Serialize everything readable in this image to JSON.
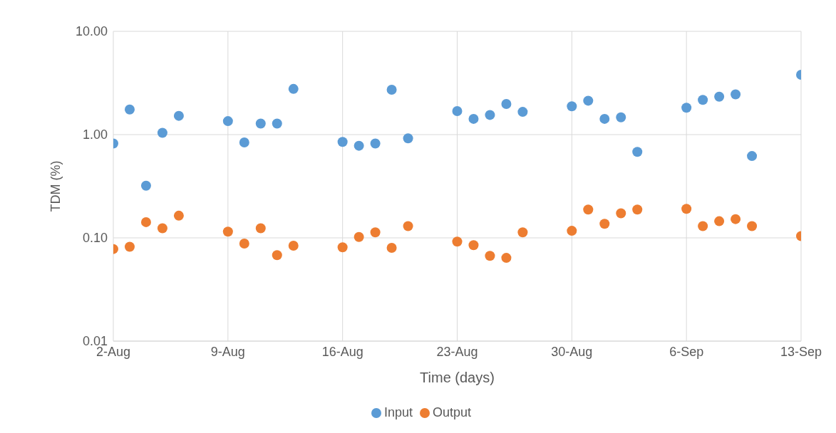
{
  "chart_data": {
    "type": "scatter",
    "xlabel": "Time (days)",
    "ylabel": "TDM (%)",
    "log": "y",
    "grid": true,
    "legend": "bottom",
    "marker": "circle",
    "xlim": [
      "--08-02",
      "--09-13"
    ],
    "xticks": [
      {
        "value": "--08-02",
        "label": "2-Aug"
      },
      {
        "value": "--08-09",
        "label": "9-Aug"
      },
      {
        "value": "--08-16",
        "label": "16-Aug"
      },
      {
        "value": "--08-23",
        "label": "23-Aug"
      },
      {
        "value": "--08-30",
        "label": "30-Aug"
      },
      {
        "value": "--09-06",
        "label": "6-Sep"
      },
      {
        "value": "--09-13",
        "label": "13-Sep"
      }
    ],
    "ylim": [
      0.01,
      10
    ],
    "yticks": [
      {
        "value": 0.01,
        "label": "0.01"
      },
      {
        "value": 0.1,
        "label": "0.10"
      },
      {
        "value": 1,
        "label": "1.00"
      },
      {
        "value": 10,
        "label": "10.00"
      }
    ],
    "x": [
      "--08-02",
      "--08-03",
      "--08-04",
      "--08-05",
      "--08-06",
      "--08-09",
      "--08-10",
      "--08-11",
      "--08-12",
      "--08-13",
      "--08-16",
      "--08-17",
      "--08-18",
      "--08-19",
      "--08-20",
      "--08-23",
      "--08-24",
      "--08-25",
      "--08-26",
      "--08-27",
      "--08-30",
      "--08-31",
      "--09-01",
      "--09-02",
      "--09-03",
      "--09-06",
      "--09-07",
      "--09-08",
      "--09-09",
      "--09-10",
      "--09-13"
    ],
    "series": [
      {
        "name": "Input",
        "color": "#5b9bd5",
        "values": [
          0.82,
          1.75,
          0.32,
          1.04,
          1.52,
          1.35,
          0.84,
          1.28,
          1.28,
          2.77,
          0.85,
          0.78,
          0.82,
          2.72,
          0.92,
          1.69,
          1.42,
          1.55,
          1.98,
          1.66,
          1.88,
          2.13,
          1.42,
          1.47,
          0.68,
          1.82,
          2.17,
          2.33,
          2.45,
          0.62,
          3.8
        ]
      },
      {
        "name": "Output",
        "color": "#ed7d31",
        "values": [
          0.078,
          0.082,
          0.142,
          0.124,
          0.164,
          0.115,
          0.088,
          0.124,
          0.068,
          0.084,
          0.081,
          0.102,
          0.113,
          0.08,
          0.13,
          0.092,
          0.085,
          0.067,
          0.064,
          0.113,
          0.117,
          0.188,
          0.137,
          0.173,
          0.188,
          0.191,
          0.13,
          0.145,
          0.152,
          0.13,
          0.104
        ]
      }
    ]
  }
}
